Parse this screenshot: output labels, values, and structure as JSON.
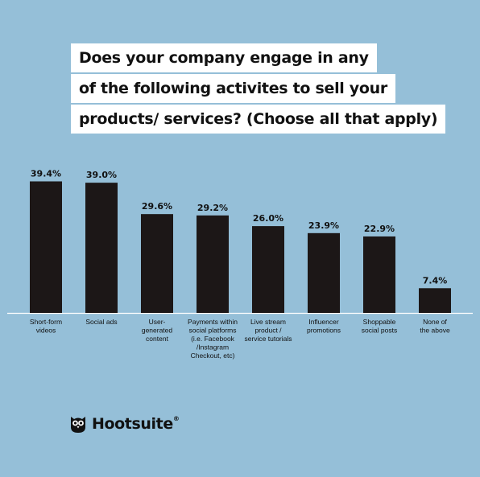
{
  "title_lines": [
    "Does your company engage in any",
    "of the following activites to sell your",
    "products/ services? (Choose all that apply)"
  ],
  "chart_data": {
    "type": "bar",
    "title": "Does your company engage in any of the following activites to sell your products/ services? (Choose all that apply)",
    "categories": [
      [
        "Short-form",
        "videos"
      ],
      [
        "Social ads"
      ],
      [
        "User-",
        "generated",
        "content"
      ],
      [
        "Payments within",
        "social platforms",
        "(i.e. Facebook",
        "/Instagram",
        "Checkout, etc)"
      ],
      [
        "Live stream",
        "product /",
        "service tutorials"
      ],
      [
        "Influencer",
        "promotions"
      ],
      [
        "Shoppable",
        "social posts"
      ],
      [
        "None of",
        "the above"
      ]
    ],
    "values": [
      39.4,
      39.0,
      29.6,
      29.2,
      26.0,
      23.9,
      22.9,
      7.4
    ],
    "value_labels": [
      "39.4%",
      "39.0%",
      "29.6%",
      "29.2%",
      "26.0%",
      "23.9%",
      "22.9%",
      "7.4%"
    ],
    "ylim": [
      0,
      40
    ],
    "grid": false,
    "bar_color": "#1c1717",
    "background_color": "#95bfd8"
  },
  "brand": {
    "name": "Hootsuite",
    "mark": "®",
    "icon": "owl-logo-icon"
  }
}
